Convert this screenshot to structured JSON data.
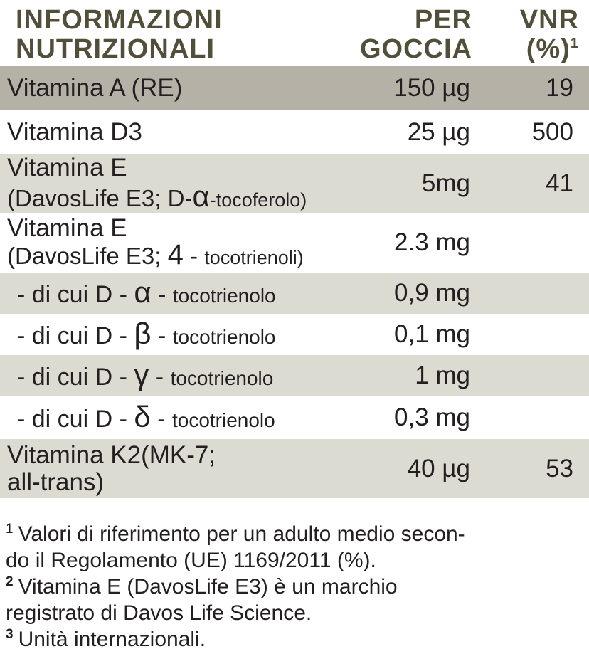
{
  "colors": {
    "header_text": "#514f39",
    "body_text": "#231f20",
    "row_highlight_bg": "#b6b1a6",
    "row_shaded_bg": "#dcdbd2",
    "background": "#ffffff"
  },
  "header": {
    "title_line1": "INFORMAZIONI",
    "title_line2": "NUTRIZIONALI",
    "per_line1": "PER",
    "per_line2": "GOCCIA",
    "vnr_line1": "VNR",
    "vnr_line2": "(%)",
    "vnr_sup": "1"
  },
  "rows": [
    {
      "label": "Vitamina A (RE)",
      "value": "150 µg",
      "vnr": "19"
    },
    {
      "label": "Vitamina D3",
      "value": "25 µg",
      "vnr": "500"
    },
    {
      "label_line1": "Vitamina E",
      "label2_pre": "(DavosLife E3; D-",
      "label2_greek": "α",
      "label2_post": "-tocoferolo)",
      "value": "5mg",
      "vnr": "41"
    },
    {
      "label_line1": "Vitamina E",
      "label2_pre": "(DavosLife E3; ",
      "label2_num": "4",
      "label2_mid": " - ",
      "label2_post": "tocotrienoli)",
      "value": "2.3 mg",
      "vnr": ""
    },
    {
      "label_pre": "- di cui D - ",
      "label_greek": "α",
      "label_mid": " - ",
      "label_small": "tocotrienolo",
      "value": "0,9 mg",
      "vnr": ""
    },
    {
      "label_pre": "- di cui D - ",
      "label_greek": "β",
      "label_mid": " - ",
      "label_small": "tocotrienolo",
      "value": "0,1 mg",
      "vnr": ""
    },
    {
      "label_pre": "- di cui D - ",
      "label_greek": "γ",
      "label_mid": " - ",
      "label_small": "tocotrienolo",
      "value": "1 mg",
      "vnr": ""
    },
    {
      "label_pre": "- di cui D - ",
      "label_greek": "δ",
      "label_mid": " - ",
      "label_small": "tocotrienolo",
      "value": "0,3 mg",
      "vnr": ""
    },
    {
      "label_line1": "Vitamina K2(MK-7;",
      "label_line2": "all-trans)",
      "value": "40 µg",
      "vnr": "53"
    }
  ],
  "footnotes": [
    {
      "sup": "1",
      "line1": "Valori di riferimento per un adulto medio secon-",
      "line2": "do il Regolamento (UE) 1169/2011 (%)."
    },
    {
      "sup": "2",
      "line1": "Vitamina E (DavosLife E3) è un marchio",
      "line2": "registrato di Davos Life Science."
    },
    {
      "sup": "3",
      "line1": "Unità internazionali."
    }
  ]
}
